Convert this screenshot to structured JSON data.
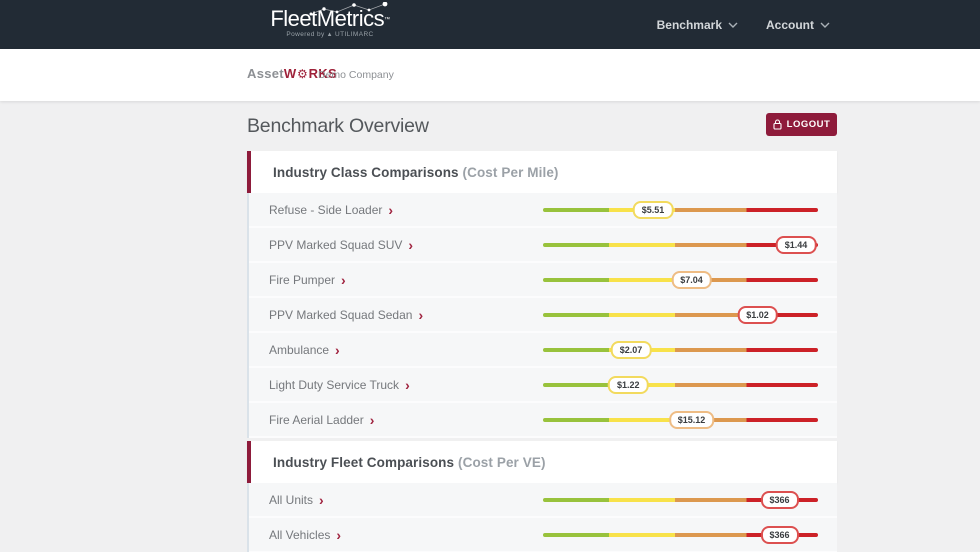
{
  "navbar": {
    "logo": {
      "brand": "FleetMetrics",
      "tm": "™",
      "powered_by": "Powered by",
      "powered_brand": "UTILIMARC"
    },
    "menus": [
      {
        "label": "Benchmark"
      },
      {
        "label": "Account"
      }
    ]
  },
  "subheader": {
    "logo": {
      "part1": "Asset",
      "part2": "W",
      "part3": "RKS"
    },
    "company": "Demo Company",
    "logout_label": "LOGOUT"
  },
  "page": {
    "title": "Benchmark Overview"
  },
  "icons": {
    "row_link": "›",
    "menu_caret": "chevron-down",
    "logout": "lock",
    "gear": "⚙",
    "powered_triangle": "▲"
  },
  "colors": {
    "navbar_bg": "#222b35",
    "accent_maroon": "#8e1b3b",
    "page_bg": "#f0f0f1",
    "row_bg": "#f6f7f8",
    "badge_border": {
      "yellow": "#f2da5e",
      "orange": "#eebc84",
      "red": "#dc5050"
    }
  },
  "gauge": {
    "segments": [
      {
        "color": "#98c23c",
        "to": 24
      },
      {
        "color": "#f8e24a",
        "to": 48
      },
      {
        "color": "#dc984f",
        "to": 74
      },
      {
        "color": "#cc2127",
        "to": 100
      }
    ]
  },
  "sections": [
    {
      "title": "Industry Class Comparisons",
      "subtitle": "(Cost Per Mile)",
      "rows": [
        {
          "label": "Refuse - Side Loader",
          "value": "$5.51",
          "position_pct": 40,
          "level": "yellow"
        },
        {
          "label": "PPV Marked Squad SUV",
          "value": "$1.44",
          "position_pct": 92,
          "level": "red"
        },
        {
          "label": "Fire Pumper",
          "value": "$7.04",
          "position_pct": 54,
          "level": "orange"
        },
        {
          "label": "PPV Marked Squad Sedan",
          "value": "$1.02",
          "position_pct": 78,
          "level": "red"
        },
        {
          "label": "Ambulance",
          "value": "$2.07",
          "position_pct": 32,
          "level": "yellow"
        },
        {
          "label": "Light Duty Service Truck",
          "value": "$1.22",
          "position_pct": 31,
          "level": "yellow"
        },
        {
          "label": "Fire Aerial Ladder",
          "value": "$15.12",
          "position_pct": 54,
          "level": "orange"
        }
      ]
    },
    {
      "title": "Industry Fleet Comparisons",
      "subtitle": "(Cost Per VE)",
      "rows": [
        {
          "label": "All Units",
          "value": "$366",
          "position_pct": 86,
          "level": "red"
        },
        {
          "label": "All Vehicles",
          "value": "$366",
          "position_pct": 86,
          "level": "red"
        }
      ]
    }
  ]
}
